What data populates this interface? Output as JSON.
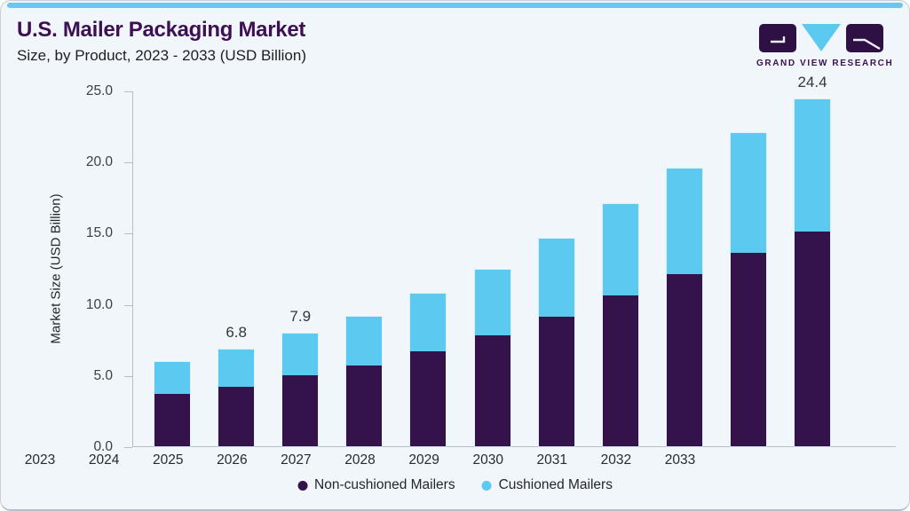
{
  "header": {
    "title": "U.S. Mailer Packaging Market",
    "subtitle": "Size, by Product, 2023 - 2033 (USD Billion)"
  },
  "logo": {
    "brand": "GRAND VIEW RESEARCH"
  },
  "colors": {
    "non_cushioned": "#331349",
    "cushioned": "#5cc9f1",
    "accent_strip": "#70c5ee",
    "title_purple": "#3d1053",
    "card_background": "#f1f6fa"
  },
  "chart_data": {
    "type": "bar",
    "stacked": true,
    "title": "U.S. Mailer Packaging Market",
    "subtitle": "Size, by Product, 2023 - 2033 (USD Billion)",
    "categories": [
      "2023",
      "2024",
      "2025",
      "2026",
      "2027",
      "2028",
      "2029",
      "2030",
      "2031",
      "2032",
      "2033"
    ],
    "series": [
      {
        "name": "Non-cushioned Mailers",
        "color": "#331349",
        "values": [
          3.7,
          4.2,
          5.0,
          5.7,
          6.7,
          7.8,
          9.1,
          10.6,
          12.1,
          13.6,
          15.1
        ]
      },
      {
        "name": "Cushioned Mailers",
        "color": "#5cc9f1",
        "values": [
          2.2,
          2.6,
          2.9,
          3.4,
          4.0,
          4.6,
          5.5,
          6.4,
          7.4,
          8.4,
          9.3
        ]
      }
    ],
    "totals": [
      5.9,
      6.8,
      7.9,
      9.1,
      10.7,
      12.4,
      14.6,
      17.0,
      19.5,
      22.0,
      24.4
    ],
    "bar_labels": [
      null,
      "6.8",
      "7.9",
      null,
      null,
      null,
      null,
      null,
      null,
      null,
      "24.4"
    ],
    "ylabel": "Market Size (USD Billion)",
    "xlabel": "",
    "ylim": [
      0,
      25
    ],
    "yticks": [
      "0.0",
      "5.0",
      "10.0",
      "15.0",
      "20.0",
      "25.0"
    ],
    "ytick_values": [
      0,
      5,
      10,
      15,
      20,
      25
    ],
    "grid": false,
    "legend": [
      "Non-cushioned Mailers",
      "Cushioned Mailers"
    ],
    "legend_position": "bottom"
  }
}
